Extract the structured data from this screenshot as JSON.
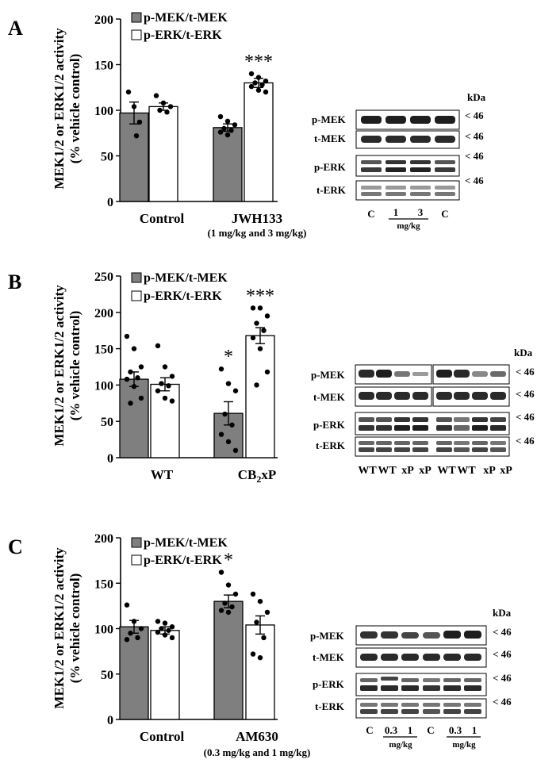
{
  "colors": {
    "mek_bar": "#7f7f7f",
    "erk_bar": "#ffffff",
    "axis": "#000000",
    "band": "#2a2a2a"
  },
  "panels": [
    {
      "letter": "A",
      "ylabel_line1": "MEK1/2 or ERK1/2 activity",
      "ylabel_line2": "(% vehicle control)",
      "chart_data": {
        "type": "bar",
        "categories": [
          "Control",
          "JWH133"
        ],
        "category_note": [
          "",
          "(1 mg/kg and 3 mg/kg)"
        ],
        "series": [
          {
            "name": "p-MEK/t-MEK",
            "values": [
              97,
              81
            ],
            "sem": [
              12,
              4
            ],
            "points": [
              [
                120,
                104,
                87,
                72
              ],
              [
                93,
                88,
                84,
                80,
                78,
                76,
                73
              ]
            ]
          },
          {
            "name": "p-ERK/t-ERK",
            "values": [
              104,
              130
            ],
            "sem": [
              4,
              5
            ],
            "points": [
              [
                116,
                108,
                104,
                100,
                98
              ],
              [
                140,
                136,
                132,
                130,
                128,
                126,
                122,
                120
              ]
            ]
          }
        ],
        "significance": [
          [
            "",
            ""
          ],
          [
            "",
            "***"
          ]
        ],
        "yticks": [
          0,
          50,
          100,
          150,
          200
        ],
        "ylim": [
          0,
          200
        ],
        "legend": "top-left"
      },
      "blot": {
        "kda": "kDa",
        "rows": [
          {
            "label": "p-MEK",
            "marker": "< 46"
          },
          {
            "label": "t-MEK",
            "marker": "< 46"
          },
          {
            "label": "p-ERK",
            "marker": "< 46"
          },
          {
            "label": "t-ERK",
            "marker": "< 46"
          }
        ],
        "lanes": [
          "C",
          "1",
          "3",
          "C"
        ],
        "unit": "mg/kg"
      }
    },
    {
      "letter": "B",
      "ylabel_line1": "MEK1/2 or ERK1/2 activity",
      "ylabel_line2": "(% vehicle control)",
      "chart_data": {
        "type": "bar",
        "categories": [
          "WT",
          "CB2xP"
        ],
        "category_note": [
          "",
          ""
        ],
        "series": [
          {
            "name": "p-MEK/t-MEK",
            "values": [
              108,
              61
            ],
            "sem": [
              10,
              16
            ],
            "points": [
              [
                167,
                150,
                125,
                118,
                110,
                108,
                98,
                82,
                75
              ],
              [
                122,
                102,
                92,
                60,
                45,
                32,
                22,
                10
              ]
            ]
          },
          {
            "name": "p-ERK/t-ERK",
            "values": [
              101,
              168
            ],
            "sem": [
              9,
              11
            ],
            "points": [
              [
                154,
                125,
                112,
                102,
                99,
                92,
                82,
                78
              ],
              [
                206,
                206,
                195,
                185,
                175,
                165,
                150,
                118,
                100
              ]
            ]
          }
        ],
        "significance": [
          [
            "",
            ""
          ],
          [
            "*",
            "***"
          ]
        ],
        "yticks": [
          0,
          50,
          100,
          150,
          200,
          250
        ],
        "ylim": [
          0,
          250
        ],
        "legend": "top-left"
      },
      "blot": {
        "kda": "kDa",
        "rows": [
          {
            "label": "p-MEK",
            "marker": "< 46"
          },
          {
            "label": "t-MEK",
            "marker": "< 46"
          },
          {
            "label": "p-ERK",
            "marker": "< 46"
          },
          {
            "label": "t-ERK",
            "marker": "< 46"
          }
        ],
        "lanes": [
          "WT",
          "WT",
          "xP",
          "xP",
          "WT",
          "WT",
          "xP",
          "xP"
        ],
        "unit": ""
      }
    },
    {
      "letter": "C",
      "ylabel_line1": "MEK1/2 or ERK1/2 activity",
      "ylabel_line2": "(% vehicle control)",
      "chart_data": {
        "type": "bar",
        "categories": [
          "Control",
          "AM630"
        ],
        "category_note": [
          "",
          "(0.3 mg/kg and 1 mg/kg)"
        ],
        "series": [
          {
            "name": "p-MEK/t-MEK",
            "values": [
              102,
              130
            ],
            "sem": [
              7,
              7
            ],
            "points": [
              [
                126,
                108,
                100,
                95,
                90,
                88
              ],
              [
                162,
                148,
                138,
                128,
                124,
                120,
                118
              ]
            ]
          },
          {
            "name": "p-ERK/t-ERK",
            "values": [
              98,
              104
            ],
            "sem": [
              4,
              10
            ],
            "points": [
              [
                108,
                106,
                102,
                100,
                98,
                96,
                93,
                90
              ],
              [
                138,
                130,
                118,
                107,
                90,
                72,
                68
              ]
            ]
          }
        ],
        "significance": [
          [
            "",
            ""
          ],
          [
            "*",
            ""
          ]
        ],
        "yticks": [
          0,
          50,
          100,
          150,
          200
        ],
        "ylim": [
          0,
          200
        ],
        "legend": "top-left"
      },
      "blot": {
        "kda": "kDa",
        "rows": [
          {
            "label": "p-MEK",
            "marker": "< 46"
          },
          {
            "label": "t-MEK",
            "marker": "< 46"
          },
          {
            "label": "p-ERK",
            "marker": "< 46"
          },
          {
            "label": "t-ERK",
            "marker": "< 46"
          }
        ],
        "lanes": [
          "C",
          "0.3",
          "1",
          "C",
          "0.3",
          "1"
        ],
        "unit": "mg/kg"
      }
    }
  ]
}
